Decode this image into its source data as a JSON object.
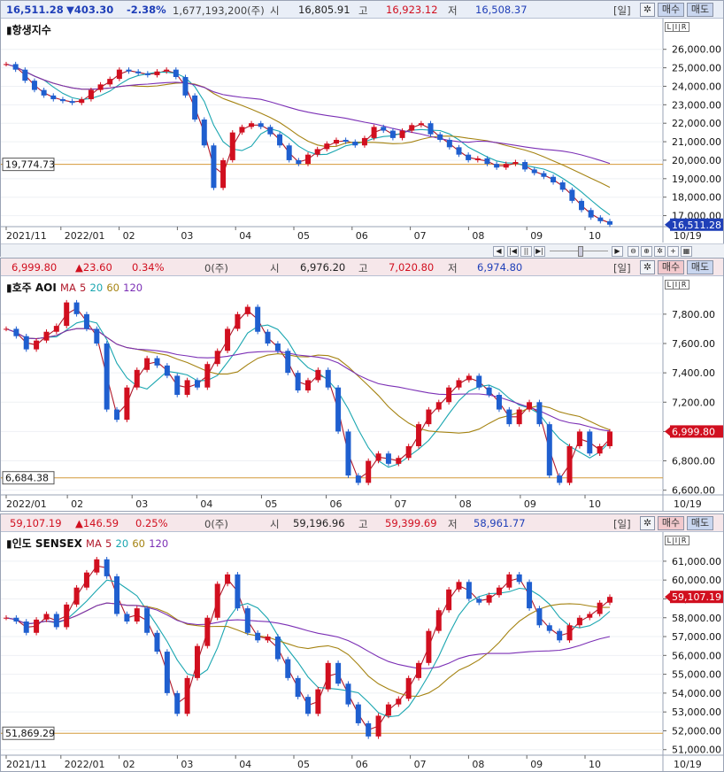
{
  "panels": [
    {
      "id": "hsi",
      "header": {
        "price": "16,511.28",
        "change": "▼403.30",
        "pct": "-2.38%",
        "volume": "1,677,193,200(주)",
        "open_label": "시",
        "open": "16,805.91",
        "high_label": "고",
        "high": "16,923.12",
        "low_label": "저",
        "low": "16,508.37",
        "period": "[일]",
        "buy": "매수",
        "sell": "매도"
      },
      "title": "항생지수",
      "ma_label": "",
      "ma_periods": [],
      "y_ticks": [
        "26,000.00",
        "25,000.00",
        "24,000.00",
        "23,000.00",
        "22,000.00",
        "21,000.00",
        "20,000.00",
        "19,000.00",
        "18,000.00",
        "17,000.00"
      ],
      "ref_value": "19,774.73",
      "last_value": "16,511.28",
      "x_labels": [
        "2021/11",
        "2022/01",
        "02",
        "03",
        "04",
        "05",
        "06",
        "07",
        "08",
        "09",
        "10"
      ],
      "x_end": "10/19",
      "chart_data": {
        "type": "line",
        "series_name": "항생지수",
        "ylim": [
          16500,
          26800
        ],
        "ref": 19774.73,
        "close": [
          25200,
          24900,
          24300,
          23800,
          23500,
          23300,
          23200,
          23100,
          23300,
          23800,
          24100,
          24400,
          24900,
          24800,
          24700,
          24600,
          24800,
          24900,
          24500,
          23500,
          22200,
          20800,
          18500,
          20000,
          21500,
          21800,
          22000,
          21800,
          21400,
          20800,
          20000,
          19800,
          20300,
          20600,
          20900,
          21100,
          21000,
          20800,
          21200,
          21800,
          21600,
          21200,
          21600,
          21900,
          22000,
          21400,
          21100,
          20700,
          20300,
          20000,
          20100,
          19800,
          19600,
          19800,
          19900,
          19500,
          19300,
          19100,
          18800,
          18400,
          17800,
          17300,
          16900,
          16700,
          16511
        ],
        "ma_colors": [
          "#b0182a",
          "#1aa6b0",
          "#a58312",
          "#7b2fb5"
        ]
      }
    },
    {
      "id": "aoi",
      "header": {
        "price": "6,999.80",
        "change": "▲23.60",
        "pct": "0.34%",
        "volume": "0(주)",
        "open_label": "시",
        "open": "6,976.20",
        "high_label": "고",
        "high": "7,020.80",
        "low_label": "저",
        "low": "6,974.80",
        "period": "[일]",
        "buy": "매수",
        "sell": "매도"
      },
      "title": "호주 AOI",
      "ma_label": "MA",
      "ma_periods": [
        "5",
        "20",
        "60",
        "120"
      ],
      "y_ticks": [
        "7,800.00",
        "7,600.00",
        "7,400.00",
        "7,200.00",
        "7,000.00",
        "6,800.00",
        "6,600.00"
      ],
      "ref_value": "6,684.38",
      "last_value": "6,999.80",
      "x_labels": [
        "2022/01",
        "02",
        "03",
        "04",
        "05",
        "06",
        "07",
        "08",
        "09",
        "10"
      ],
      "x_end": "10/19",
      "chart_data": {
        "type": "line",
        "series_name": "호주 AOI",
        "ylim": [
          6580,
          7950
        ],
        "ref": 6684.38,
        "close": [
          7700,
          7650,
          7560,
          7620,
          7680,
          7720,
          7880,
          7800,
          7700,
          7600,
          7150,
          7080,
          7300,
          7420,
          7500,
          7450,
          7380,
          7250,
          7350,
          7300,
          7460,
          7550,
          7700,
          7800,
          7850,
          7680,
          7600,
          7550,
          7400,
          7280,
          7350,
          7420,
          7300,
          7000,
          6700,
          6650,
          6800,
          6850,
          6780,
          6820,
          6900,
          7050,
          7150,
          7200,
          7300,
          7350,
          7380,
          7300,
          7250,
          7150,
          7050,
          7150,
          7200,
          7050,
          6700,
          6650,
          6900,
          7000,
          6850,
          6900,
          7000
        ],
        "ma_colors": [
          "#b0182a",
          "#1aa6b0",
          "#a58312",
          "#7b2fb5"
        ]
      }
    },
    {
      "id": "sensex",
      "header": {
        "price": "59,107.19",
        "change": "▲146.59",
        "pct": "0.25%",
        "volume": "0(주)",
        "open_label": "시",
        "open": "59,196.96",
        "high_label": "고",
        "high": "59,399.69",
        "low_label": "저",
        "low": "58,961.77",
        "period": "[일]",
        "buy": "매수",
        "sell": "매도"
      },
      "title": "인도 SENSEX",
      "ma_label": "MA",
      "ma_periods": [
        "5",
        "20",
        "60",
        "120"
      ],
      "y_ticks": [
        "61,000.00",
        "60,000.00",
        "59,000.00",
        "58,000.00",
        "57,000.00",
        "56,000.00",
        "55,000.00",
        "54,000.00",
        "53,000.00",
        "52,000.00",
        "51,000.00"
      ],
      "ref_value": "51,869.29",
      "last_value": "59,107.19",
      "x_labels": [
        "2021/11",
        "2022/01",
        "02",
        "03",
        "04",
        "05",
        "06",
        "07",
        "08",
        "09",
        "10"
      ],
      "x_end": "10/19",
      "chart_data": {
        "type": "line",
        "series_name": "인도 SENSEX",
        "ylim": [
          50800,
          61700
        ],
        "ref": 51869.29,
        "close": [
          58000,
          57800,
          57200,
          57900,
          58200,
          57500,
          58700,
          59600,
          60400,
          61100,
          60200,
          58200,
          57800,
          58500,
          57200,
          56200,
          54000,
          52900,
          54800,
          56500,
          58000,
          59800,
          60300,
          58500,
          57200,
          56800,
          57000,
          55800,
          54800,
          53800,
          52900,
          54200,
          55600,
          54500,
          53400,
          52400,
          51700,
          52800,
          53400,
          53700,
          54800,
          55600,
          57300,
          58400,
          59500,
          59900,
          59000,
          58800,
          59200,
          59600,
          60300,
          59900,
          58500,
          57600,
          57300,
          56800,
          57600,
          58000,
          58200,
          58800,
          59107
        ],
        "ma_colors": [
          "#b0182a",
          "#1aa6b0",
          "#a58312",
          "#7b2fb5"
        ]
      }
    }
  ],
  "scrollbar": {
    "left_arrow": "◀",
    "right_arrow": "▶",
    "btn_a": "|◀",
    "btn_b": "||",
    "btn_c": "▶|",
    "zoom_out": "⊖",
    "zoom_in": "⊕",
    "settings": "✲",
    "plus": "+",
    "grid": "▦"
  }
}
